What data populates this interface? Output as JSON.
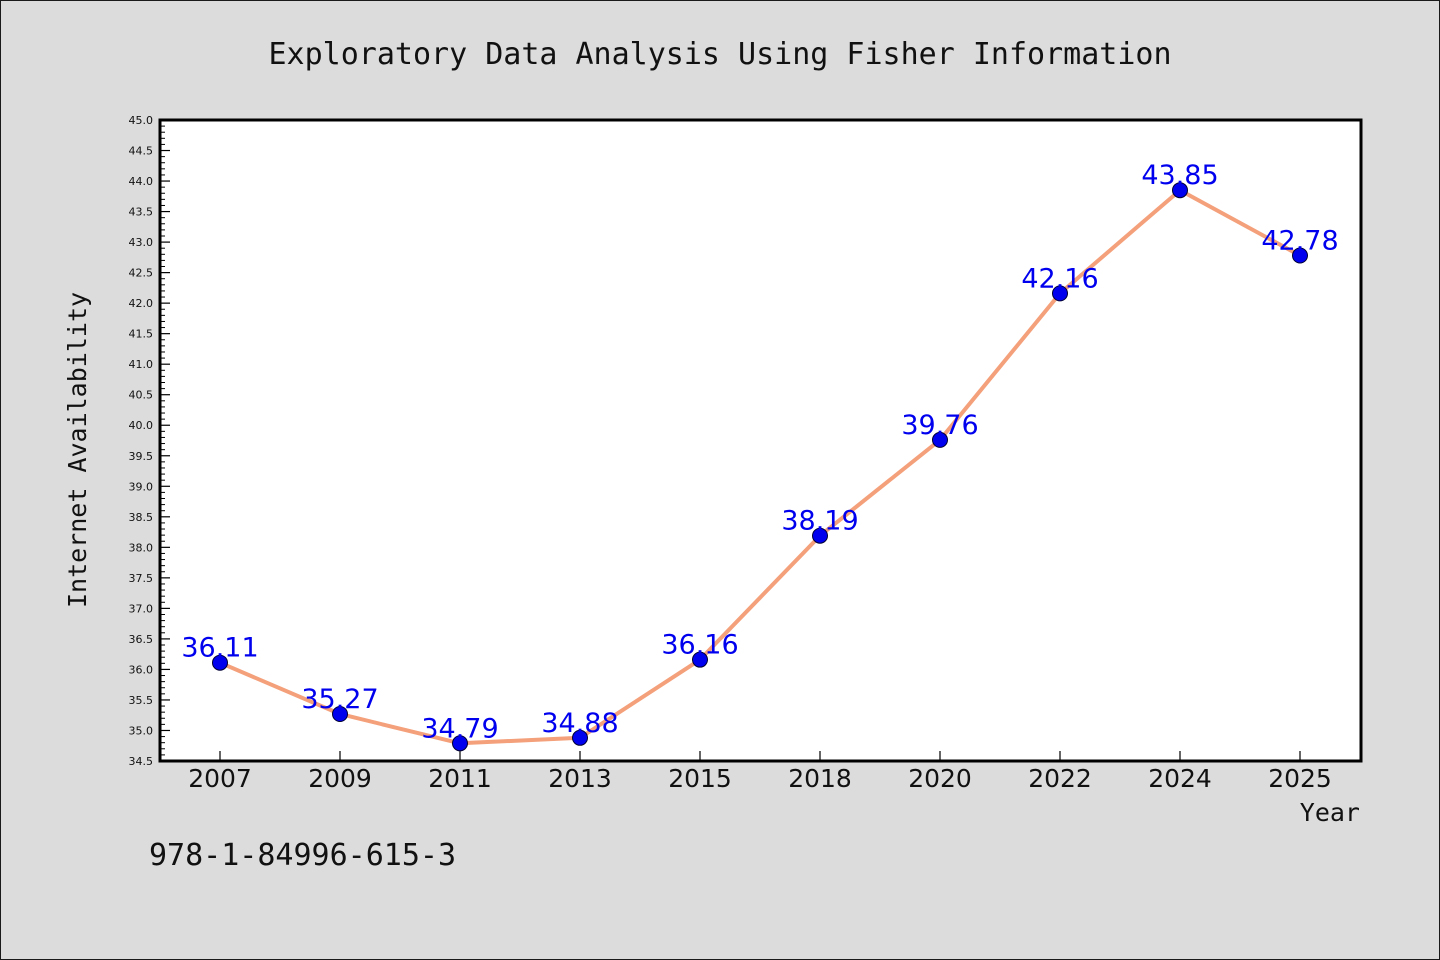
{
  "footer": {
    "isbn": "978-1-84996-615-3"
  },
  "colors": {
    "line": "#f4a07a",
    "marker": "#0000ee",
    "label": "#0000ee",
    "plot_bg": "#ffffff",
    "figure_bg": "#dcdcdc"
  },
  "chart_data": {
    "type": "line",
    "title": "Exploratory Data Analysis Using Fisher Information",
    "xlabel": "Year",
    "ylabel": "Internet Availability",
    "categories": [
      "2007",
      "2009",
      "2011",
      "2013",
      "2015",
      "2018",
      "2020",
      "2022",
      "2024",
      "2025"
    ],
    "values": [
      36.11,
      35.27,
      34.79,
      34.88,
      36.16,
      38.19,
      39.76,
      42.16,
      43.85,
      42.78
    ],
    "data_labels": [
      "36.11",
      "35.27",
      "34.79",
      "34.88",
      "36.16",
      "38.19",
      "39.76",
      "42.16",
      "43.85",
      "42.78"
    ],
    "ylim": [
      34.5,
      45.0
    ],
    "yticks": [
      "34.5",
      "35.0",
      "35.5",
      "36.0",
      "36.5",
      "37.0",
      "37.5",
      "38.0",
      "38.5",
      "39.0",
      "39.5",
      "40.0",
      "40.5",
      "41.0",
      "41.5",
      "42.0",
      "42.5",
      "43.0",
      "43.5",
      "44.0",
      "44.5",
      "45.0"
    ],
    "grid": false,
    "legend": "none",
    "markers": true
  }
}
